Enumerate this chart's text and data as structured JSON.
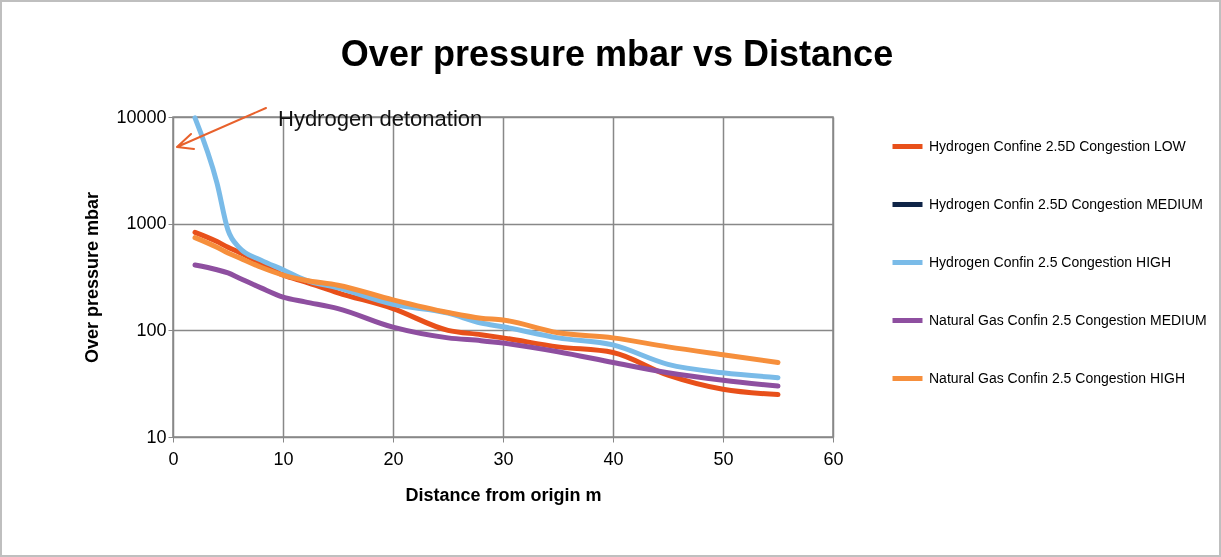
{
  "chart_data": {
    "type": "line",
    "title": "Over pressure mbar vs Distance",
    "xlabel": "Distance from origin m",
    "ylabel": "Over pressure mbar",
    "x": [
      2,
      4,
      5,
      6,
      8,
      10,
      12,
      15,
      20,
      25,
      28,
      30,
      35,
      40,
      45,
      50,
      55
    ],
    "series": [
      {
        "name": "Hydrogen Confine 2.5D Congestion LOW",
        "color": "#e8501a",
        "values": [
          830,
          680,
          600,
          540,
          425,
          330,
          285,
          225,
          160,
          100,
          91,
          85,
          70,
          62,
          38,
          28,
          25
        ]
      },
      {
        "name": "Hydrogen Confin 2.5D Congestion MEDIUM",
        "color": "#0f2447",
        "values": [
          null,
          null,
          null,
          null,
          null,
          null,
          null,
          null,
          null,
          null,
          null,
          null,
          null,
          null,
          null,
          null,
          null
        ]
      },
      {
        "name": "Hydrogen Confin 2.5 Congestion HIGH",
        "color": "#7abbe8",
        "values": [
          9800,
          2400,
          870,
          600,
          455,
          370,
          297,
          250,
          175,
          145,
          117,
          108,
          85,
          73,
          48,
          40,
          36
        ]
      },
      {
        "name": "Natural Gas Confin 2.5 Congestion MEDIUM",
        "color": "#8e4fa0",
        "values": [
          410,
          370,
          345,
          310,
          250,
          205,
          185,
          160,
          107,
          85,
          80,
          76,
          63,
          50,
          40,
          34,
          30
        ]
      },
      {
        "name": "Natural Gas Confin 2.5 Congestion HIGH",
        "color": "#f68f3c",
        "values": [
          740,
          600,
          530,
          480,
          390,
          330,
          295,
          265,
          193,
          147,
          130,
          125,
          95,
          85,
          70,
          59,
          50
        ]
      }
    ],
    "xlim": [
      0,
      60
    ],
    "xticks": [
      0,
      10,
      20,
      30,
      40,
      50,
      60
    ],
    "ylim": [
      10,
      10000
    ],
    "yticks": [
      10,
      100,
      1000,
      10000
    ],
    "log": true,
    "grid": true,
    "legend": "right",
    "line_style": "solid",
    "annotations": [
      "Hydrogen detonation"
    ]
  }
}
